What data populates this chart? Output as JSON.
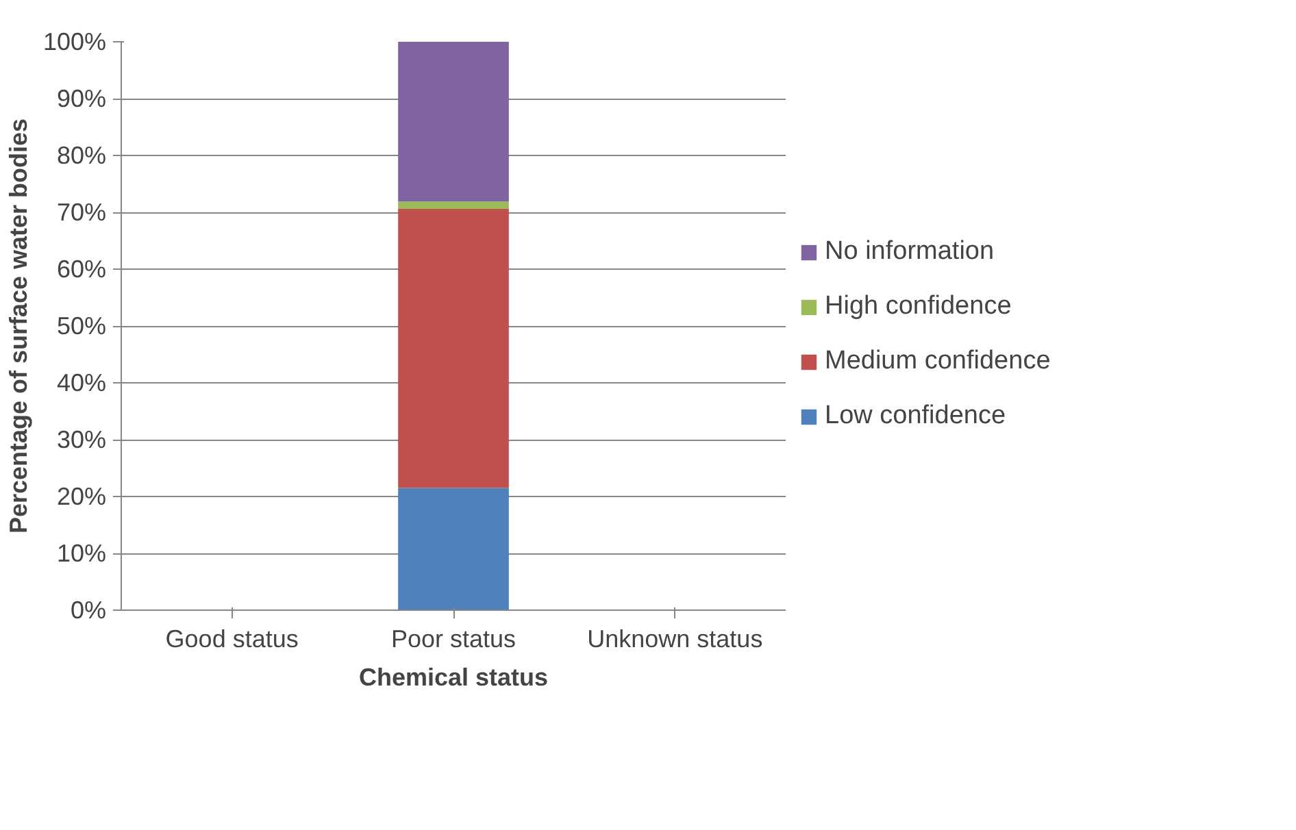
{
  "chart_data": {
    "type": "bar",
    "stacked": true,
    "xlabel": "Chemical status",
    "ylabel": "Percentage of surface water bodies",
    "categories": [
      "Good status",
      "Poor status",
      "Unknown status"
    ],
    "series": [
      {
        "name": "Low confidence",
        "color": "#4f81bd",
        "values": [
          0,
          21.5,
          0
        ]
      },
      {
        "name": "Medium confidence",
        "color": "#c0504d",
        "values": [
          0,
          49.1,
          0
        ]
      },
      {
        "name": "High confidence",
        "color": "#9bbb59",
        "values": [
          0,
          1.3,
          0
        ]
      },
      {
        "name": "No information",
        "color": "#8064a2",
        "values": [
          0,
          28.1,
          0
        ]
      }
    ],
    "ylim": [
      0,
      100
    ],
    "yticks": [
      {
        "value": 0,
        "label": "0%"
      },
      {
        "value": 10,
        "label": "10%"
      },
      {
        "value": 20,
        "label": "20%"
      },
      {
        "value": 30,
        "label": "30%"
      },
      {
        "value": 40,
        "label": "40%"
      },
      {
        "value": 50,
        "label": "50%"
      },
      {
        "value": 60,
        "label": "60%"
      },
      {
        "value": 70,
        "label": "70%"
      },
      {
        "value": 80,
        "label": "80%"
      },
      {
        "value": 90,
        "label": "90%"
      },
      {
        "value": 100,
        "label": "100%"
      }
    ],
    "grid": "y",
    "legend": "right"
  }
}
